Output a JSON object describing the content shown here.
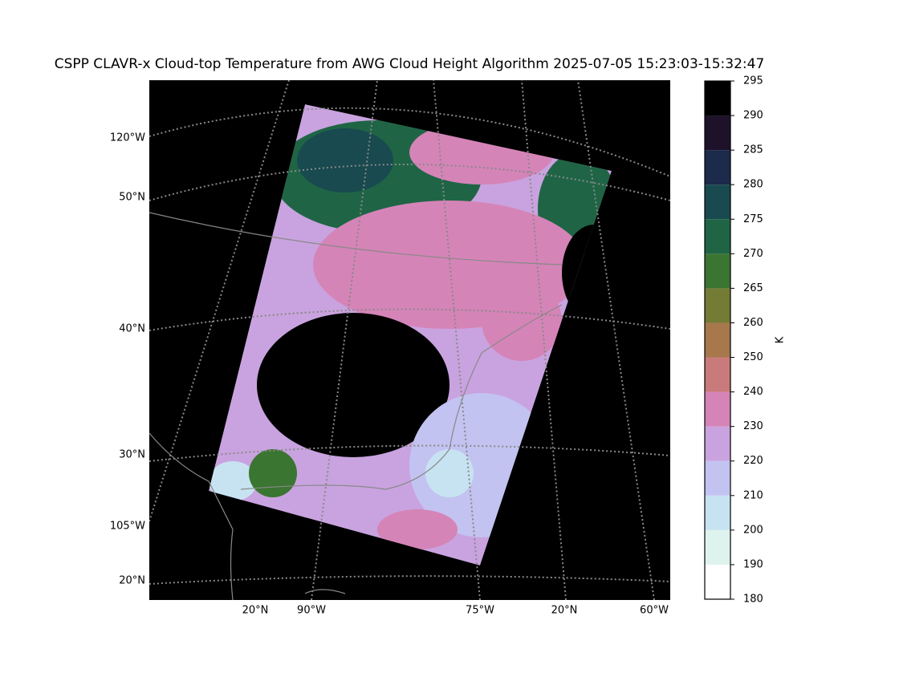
{
  "title": "CSPP CLAVR-x Cloud-top Temperature from AWG Cloud Height Algorithm 2025-07-05 15:23:03-15:32:47",
  "map": {
    "left_labels": [
      "120°W",
      "50°N",
      "40°N",
      "30°N",
      "105°W",
      "20°N"
    ],
    "bottom_labels": [
      "20°N",
      "90°W",
      "75°W",
      "20°N",
      "60°W"
    ]
  },
  "colorbar": {
    "label": "K",
    "ticks": [
      180,
      190,
      200,
      210,
      220,
      230,
      240,
      250,
      260,
      265,
      270,
      275,
      280,
      285,
      290,
      295
    ],
    "colors": [
      "#ffffff",
      "#dff3ee",
      "#c7e3f2",
      "#c3c3f1",
      "#c9a3df",
      "#d584b8",
      "#c97a7a",
      "#a6784c",
      "#737b34",
      "#3b7532",
      "#1f6545",
      "#184a4f",
      "#1c2a4b",
      "#1d1229",
      "#000000"
    ]
  }
}
